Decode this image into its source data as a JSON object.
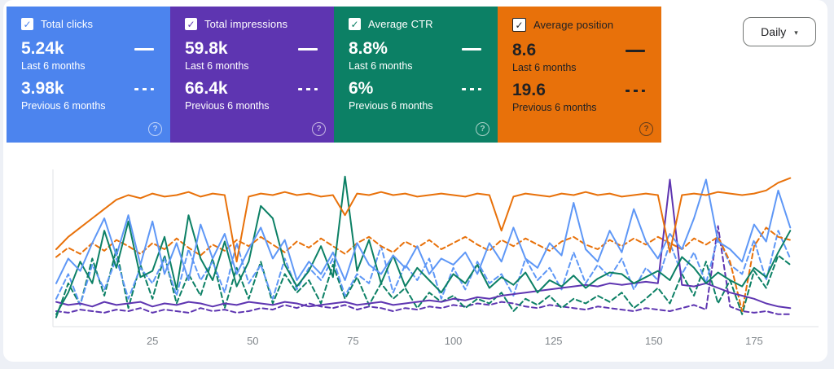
{
  "controls": {
    "interval_selector": {
      "value": "Daily",
      "caret_icon": "▾"
    }
  },
  "cards": [
    {
      "title": "Total clicks",
      "current_value": "5.24k",
      "current_label": "Last 6 months",
      "previous_value": "3.98k",
      "previous_label": "Previous 6 months",
      "color": "#4c84ee",
      "text_color": "#ffffff",
      "check_color": "#4c84ee",
      "checkbox_border": "none",
      "help_icon": "?",
      "check_icon": "✓"
    },
    {
      "title": "Total impressions",
      "current_value": "59.8k",
      "current_label": "Last 6 months",
      "previous_value": "66.4k",
      "previous_label": "Previous 6 months",
      "color": "#5e35b1",
      "text_color": "#ffffff",
      "check_color": "#5e35b1",
      "checkbox_border": "none",
      "help_icon": "?",
      "check_icon": "✓"
    },
    {
      "title": "Average CTR",
      "current_value": "8.8%",
      "current_label": "Last 6 months",
      "previous_value": "6%",
      "previous_label": "Previous 6 months",
      "color": "#0c8065",
      "text_color": "#ffffff",
      "check_color": "#0c8065",
      "checkbox_border": "none",
      "help_icon": "?",
      "check_icon": "✓"
    },
    {
      "title": "Average position",
      "current_value": "8.6",
      "current_label": "Last 6 months",
      "previous_value": "19.6",
      "previous_label": "Previous 6 months",
      "color": "#e8710a",
      "text_color": "#202124",
      "check_color": "#202124",
      "checkbox_border": "1.5px solid #202124",
      "help_icon": "?",
      "check_icon": "✓"
    }
  ],
  "chart_data": {
    "type": "line",
    "title": "",
    "xlabel": "",
    "ylabel": "",
    "x_unit": "day index (last ~6 months, daily)",
    "x_start": 1,
    "x_step": 3,
    "x_max": 184,
    "xticks": [
      25,
      50,
      75,
      100,
      125,
      150,
      175
    ],
    "ylim": [
      0,
      100
    ],
    "y_note": "values are percent of plot height; chart has no visible y axis",
    "grid": false,
    "legend_position": "none (encoded in metric cards: solid = last 6 months, dashed = previous 6 months)",
    "series": [
      {
        "name": "Total impressions — Previous 6 months",
        "color": "#5e35b1",
        "style": "dashed",
        "values": [
          10,
          9,
          11,
          10,
          9,
          11,
          10,
          12,
          9,
          11,
          10,
          9,
          12,
          10,
          11,
          9,
          10,
          12,
          11,
          14,
          12,
          15,
          13,
          12,
          14,
          11,
          13,
          12,
          10,
          12,
          11,
          13,
          12,
          14,
          13,
          15,
          14,
          16,
          15,
          13,
          12,
          14,
          13,
          12,
          11,
          13,
          12,
          11,
          10,
          12,
          11,
          10,
          12,
          14,
          11,
          65,
          13,
          10,
          9,
          10,
          8,
          8
        ]
      },
      {
        "name": "Average CTR — Previous 6 months",
        "color": "#0c8065",
        "style": "dashed",
        "values": [
          6,
          28,
          14,
          44,
          20,
          50,
          12,
          40,
          18,
          46,
          15,
          34,
          20,
          44,
          12,
          38,
          18,
          42,
          15,
          34,
          22,
          30,
          15,
          40,
          18,
          32,
          14,
          28,
          18,
          25,
          12,
          22,
          16,
          20,
          12,
          18,
          15,
          22,
          10,
          18,
          14,
          20,
          12,
          18,
          15,
          20,
          16,
          22,
          12,
          18,
          25,
          15,
          34,
          20,
          42,
          15,
          30,
          8,
          36,
          25,
          46,
          40
        ]
      },
      {
        "name": "Total clicks — Previous 6 months",
        "color": "#5e97f6",
        "style": "dashed",
        "values": [
          18,
          34,
          14,
          40,
          24,
          44,
          18,
          38,
          28,
          44,
          20,
          50,
          30,
          42,
          22,
          54,
          28,
          40,
          18,
          44,
          24,
          38,
          30,
          44,
          20,
          34,
          28,
          52,
          22,
          40,
          30,
          44,
          18,
          38,
          24,
          42,
          28,
          34,
          20,
          44,
          30,
          38,
          24,
          48,
          28,
          40,
          32,
          44,
          24,
          38,
          30,
          54,
          34,
          48,
          28,
          58,
          40,
          34,
          56,
          30,
          62,
          44
        ]
      },
      {
        "name": "Average position — Previous 6 months",
        "color": "#e8710a",
        "style": "dashed",
        "values": [
          45,
          51,
          47,
          54,
          49,
          56,
          52,
          47,
          54,
          50,
          57,
          51,
          46,
          53,
          49,
          56,
          52,
          58,
          53,
          48,
          55,
          51,
          57,
          52,
          47,
          54,
          58,
          52,
          48,
          55,
          51,
          56,
          50,
          54,
          58,
          53,
          49,
          56,
          52,
          57,
          53,
          49,
          55,
          58,
          53,
          50,
          56,
          52,
          57,
          53,
          58,
          54,
          50,
          57,
          53,
          58,
          42,
          10,
          52,
          64,
          58,
          56
        ]
      },
      {
        "name": "Total impressions — Last 6 months",
        "color": "#5e35b1",
        "style": "solid",
        "values": [
          16,
          14,
          15,
          13,
          16,
          14,
          15,
          16,
          13,
          15,
          14,
          16,
          15,
          13,
          15,
          14,
          16,
          15,
          14,
          16,
          15,
          13,
          14,
          15,
          16,
          14,
          15,
          16,
          14,
          15,
          16,
          17,
          16,
          18,
          17,
          19,
          18,
          20,
          21,
          22,
          23,
          24,
          25,
          26,
          27,
          26,
          28,
          27,
          28,
          29,
          28,
          95,
          27,
          26,
          28,
          25,
          22,
          20,
          18,
          15,
          13,
          12
        ]
      },
      {
        "name": "Average CTR — Last 6 months",
        "color": "#0c8065",
        "style": "solid",
        "values": [
          8,
          22,
          42,
          28,
          62,
          38,
          68,
          32,
          36,
          58,
          24,
          72,
          44,
          30,
          55,
          26,
          42,
          78,
          70,
          40,
          26,
          36,
          52,
          32,
          97,
          36,
          56,
          28,
          46,
          26,
          38,
          30,
          22,
          34,
          28,
          40,
          25,
          32,
          27,
          35,
          22,
          30,
          26,
          33,
          25,
          31,
          35,
          34,
          28,
          32,
          36,
          30,
          45,
          38,
          28,
          35,
          30,
          26,
          38,
          32,
          48,
          62
        ]
      },
      {
        "name": "Total clicks — Last 6 months",
        "color": "#5e97f6",
        "style": "solid",
        "values": [
          28,
          44,
          36,
          54,
          70,
          46,
          72,
          40,
          68,
          34,
          54,
          30,
          66,
          44,
          60,
          34,
          50,
          64,
          44,
          56,
          30,
          42,
          34,
          48,
          30,
          54,
          40,
          34,
          46,
          38,
          52,
          34,
          44,
          40,
          48,
          34,
          54,
          42,
          64,
          44,
          38,
          54,
          46,
          80,
          50,
          42,
          62,
          48,
          76,
          55,
          44,
          60,
          50,
          70,
          95,
          55,
          50,
          42,
          66,
          55,
          88,
          64
        ]
      },
      {
        "name": "Average position — Last 6 months",
        "color": "#e8710a",
        "style": "solid",
        "values": [
          50,
          58,
          64,
          70,
          76,
          82,
          85,
          83,
          86,
          84,
          85,
          87,
          84,
          86,
          85,
          42,
          84,
          86,
          85,
          87,
          85,
          86,
          84,
          85,
          72,
          86,
          85,
          87,
          85,
          86,
          84,
          85,
          86,
          85,
          84,
          86,
          85,
          62,
          84,
          86,
          85,
          84,
          86,
          85,
          87,
          85,
          86,
          84,
          85,
          86,
          85,
          48,
          85,
          86,
          85,
          87,
          86,
          85,
          86,
          88,
          93,
          96
        ]
      }
    ]
  }
}
